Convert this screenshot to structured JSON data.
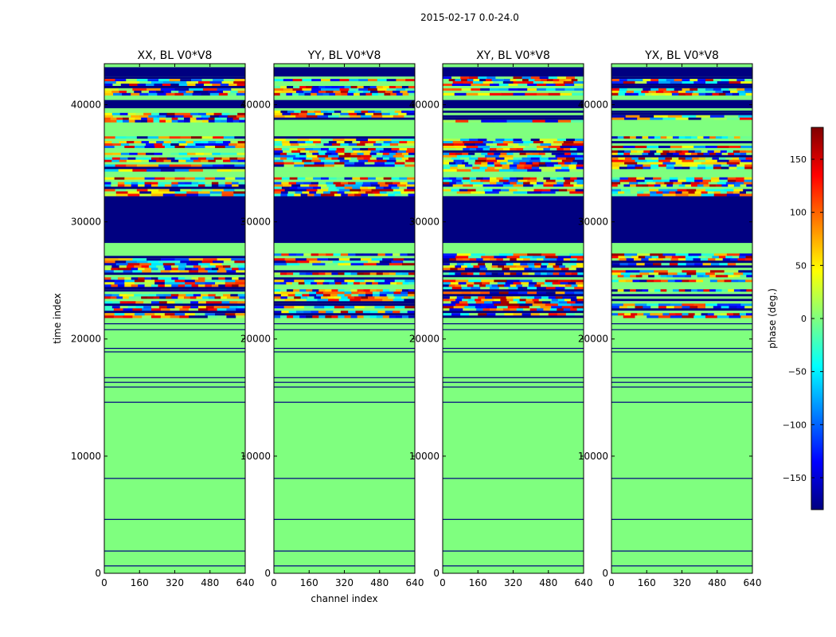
{
  "figure": {
    "suptitle": "2015-02-17 0.0-24.0"
  },
  "colormap": {
    "name": "jet",
    "stops": [
      "#000080",
      "#0000ff",
      "#0080ff",
      "#00ffff",
      "#7fff7f",
      "#ffff00",
      "#ff8000",
      "#ff0000",
      "#800000"
    ]
  },
  "chart_data": [
    {
      "type": "heatmap",
      "title": "XX, BL V0*V8",
      "xlabel": "",
      "ylabel": "time index",
      "xlim": [
        0,
        640
      ],
      "ylim": [
        0,
        43500
      ],
      "x_ticks": [
        0,
        160,
        320,
        480,
        640
      ],
      "y_ticks": [
        0,
        10000,
        20000,
        30000,
        40000
      ],
      "bands": [
        {
          "t0": 28200,
          "t1": 32200,
          "value": -180
        },
        {
          "t0": 39700,
          "t1": 40400,
          "value": -180
        },
        {
          "t0": 42400,
          "t1": 43200,
          "value": -180
        },
        {
          "t0": 32200,
          "t1": 33800,
          "value": "noisy"
        },
        {
          "t0": 34300,
          "t1": 37300,
          "value": "noisy"
        },
        {
          "t0": 38500,
          "t1": 39500,
          "value": "noisy"
        },
        {
          "t0": 21800,
          "t1": 27300,
          "value": "noisy"
        },
        {
          "t0": 40800,
          "t1": 42400,
          "value": "noisy"
        }
      ]
    },
    {
      "type": "heatmap",
      "title": "YY, BL V0*V8",
      "xlabel": "channel index",
      "ylabel": "",
      "xlim": [
        0,
        640
      ],
      "ylim": [
        0,
        43500
      ],
      "x_ticks": [
        0,
        160,
        320,
        480,
        640
      ],
      "y_ticks": [
        0,
        10000,
        20000,
        30000,
        40000
      ],
      "bands": [
        {
          "t0": 28200,
          "t1": 32200,
          "value": -180
        },
        {
          "t0": 39700,
          "t1": 40400,
          "value": -180
        },
        {
          "t0": 42400,
          "t1": 43200,
          "value": -180
        },
        {
          "t0": 32200,
          "t1": 33800,
          "value": "noisy"
        },
        {
          "t0": 34300,
          "t1": 37300,
          "value": "noisy"
        },
        {
          "t0": 38500,
          "t1": 39500,
          "value": "noisy"
        },
        {
          "t0": 21800,
          "t1": 27300,
          "value": "noisy"
        },
        {
          "t0": 40800,
          "t1": 42400,
          "value": "noisy"
        }
      ]
    },
    {
      "type": "heatmap",
      "title": "XY, BL V0*V8",
      "xlabel": "",
      "ylabel": "",
      "xlim": [
        0,
        640
      ],
      "ylim": [
        0,
        43500
      ],
      "x_ticks": [
        0,
        160,
        320,
        480,
        640
      ],
      "y_ticks": [
        0,
        10000,
        20000,
        30000,
        40000
      ],
      "bands": [
        {
          "t0": 28200,
          "t1": 32200,
          "value": -180
        },
        {
          "t0": 39700,
          "t1": 40400,
          "value": -180
        },
        {
          "t0": 42400,
          "t1": 43200,
          "value": -180
        },
        {
          "t0": 32200,
          "t1": 33800,
          "value": "noisy"
        },
        {
          "t0": 34300,
          "t1": 37300,
          "value": "noisy"
        },
        {
          "t0": 38500,
          "t1": 39500,
          "value": "noisy"
        },
        {
          "t0": 21800,
          "t1": 27300,
          "value": "noisy"
        },
        {
          "t0": 40800,
          "t1": 42400,
          "value": "noisy"
        }
      ]
    },
    {
      "type": "heatmap",
      "title": "YX, BL V0*V8",
      "xlabel": "",
      "ylabel": "",
      "xlim": [
        0,
        640
      ],
      "ylim": [
        0,
        43500
      ],
      "x_ticks": [
        0,
        160,
        320,
        480,
        640
      ],
      "y_ticks": [
        0,
        10000,
        20000,
        30000,
        40000
      ],
      "bands": [
        {
          "t0": 28200,
          "t1": 32200,
          "value": -180
        },
        {
          "t0": 39700,
          "t1": 40400,
          "value": -180
        },
        {
          "t0": 42400,
          "t1": 43200,
          "value": -180
        },
        {
          "t0": 32200,
          "t1": 33800,
          "value": "noisy"
        },
        {
          "t0": 34300,
          "t1": 37300,
          "value": "noisy"
        },
        {
          "t0": 38500,
          "t1": 39500,
          "value": "noisy"
        },
        {
          "t0": 21800,
          "t1": 27300,
          "value": "noisy"
        },
        {
          "t0": 40800,
          "t1": 42400,
          "value": "noisy"
        }
      ]
    }
  ],
  "colorbar": {
    "label": "phase (deg.)",
    "min": -180,
    "max": 180,
    "ticks": [
      150,
      100,
      50,
      0,
      -50,
      -100,
      -150
    ],
    "tick_labels": [
      "150",
      "100",
      "50",
      "0",
      "−50",
      "−100",
      "−150"
    ]
  }
}
